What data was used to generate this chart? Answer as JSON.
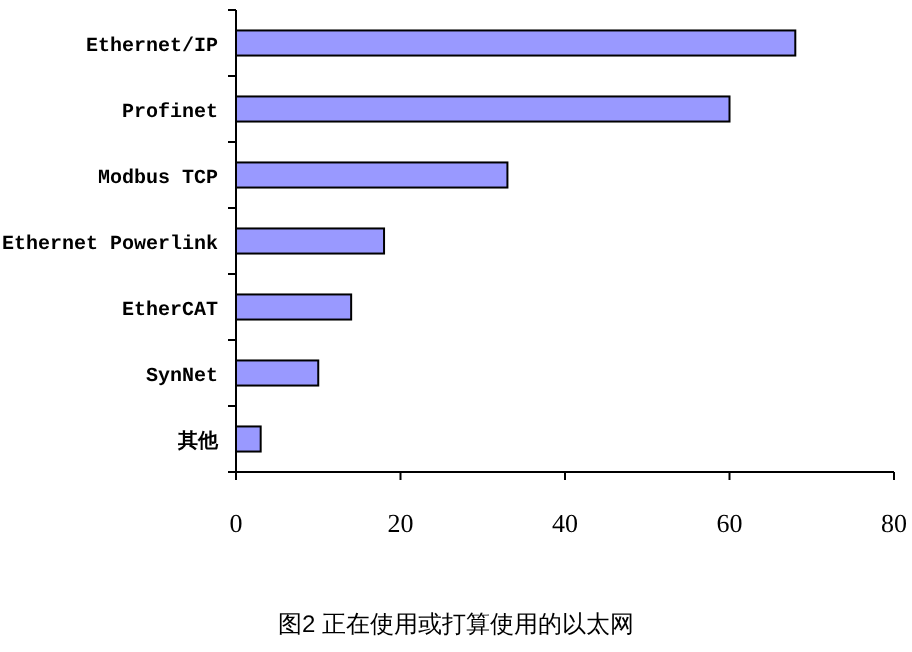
{
  "chart_data": {
    "type": "bar",
    "orientation": "horizontal",
    "title": "图2 正在使用或打算使用的以太网",
    "categories": [
      "Ethernet/IP",
      "Profinet",
      "Modbus TCP",
      "Ethernet Powerlink",
      "EtherCAT",
      "SynNet",
      "其他"
    ],
    "values": [
      68,
      60,
      33,
      18,
      14,
      10,
      3
    ],
    "color": "#9999ff",
    "xlim": [
      0,
      80
    ],
    "xticks": [
      0,
      20,
      40,
      60,
      80
    ]
  }
}
